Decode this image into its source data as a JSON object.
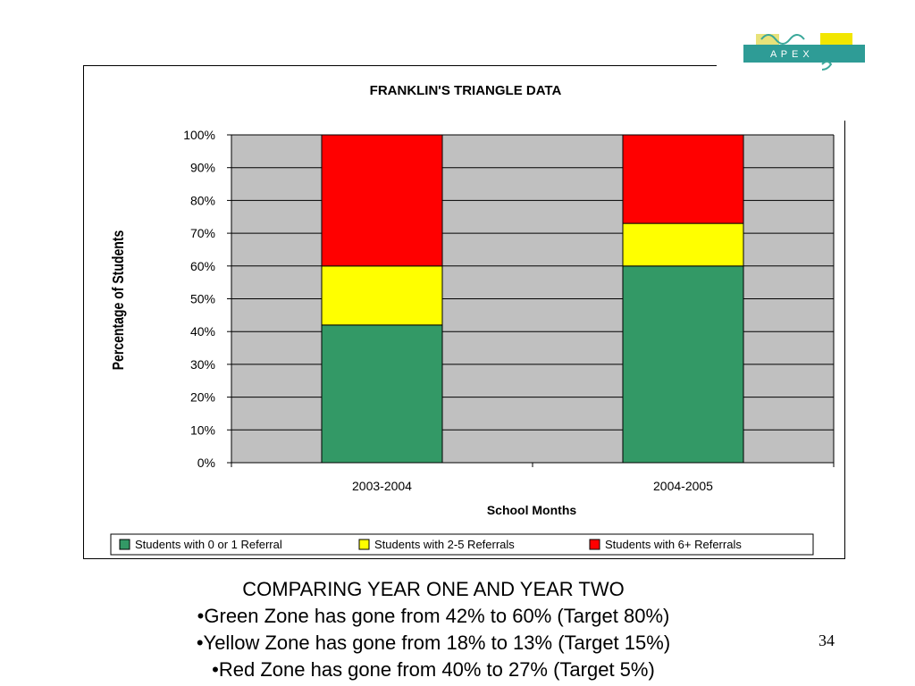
{
  "slide": {
    "logo_text": "A P E X",
    "caption_heading": "COMPARING YEAR ONE AND YEAR TWO",
    "bullets": [
      "•Green Zone has gone from 42% to 60% (Target 80%)",
      "•Yellow Zone has gone from 18% to 13% (Target 15%)",
      "•Red Zone has gone from 40% to 27% (Target 5%)"
    ],
    "page_number": "34"
  },
  "chart_data": {
    "type": "bar",
    "stacked": true,
    "title": "FRANKLIN'S TRIANGLE DATA",
    "xlabel": "School Months",
    "ylabel": "Percentage of Students",
    "categories": [
      "2003-2004",
      "2004-2005"
    ],
    "series": [
      {
        "name": "Students with 0 or 1 Referral",
        "values": [
          42,
          60
        ],
        "color": "#339966"
      },
      {
        "name": "Students with 2-5 Referrals",
        "values": [
          18,
          13
        ],
        "color": "#FFFF00"
      },
      {
        "name": "Students with 6+ Referrals",
        "values": [
          40,
          27
        ],
        "color": "#FF0000"
      }
    ],
    "ylim": [
      0,
      100
    ],
    "yticks": [
      "0%",
      "10%",
      "20%",
      "30%",
      "40%",
      "50%",
      "60%",
      "70%",
      "80%",
      "90%",
      "100%"
    ],
    "plot_background": "#C0C0C0",
    "grid": true,
    "legend_position": "bottom"
  }
}
